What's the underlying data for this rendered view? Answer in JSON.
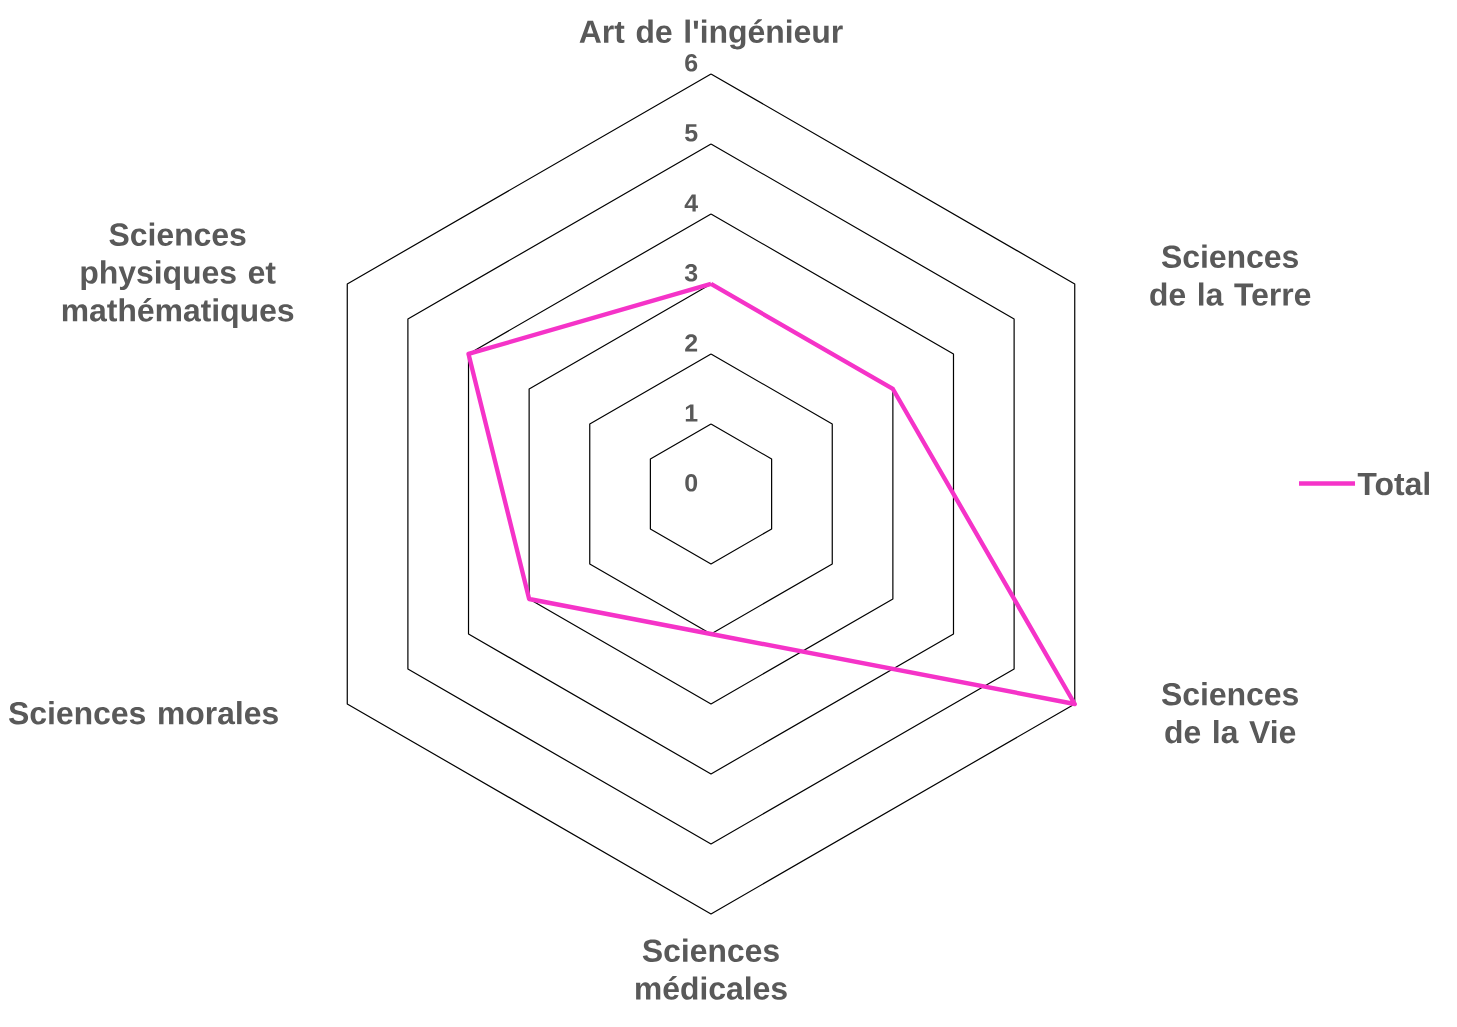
{
  "chart_data": {
    "type": "radar",
    "categories": [
      "Art de l'ingénieur",
      "Sciences de la Terre",
      "Sciences de la Vie",
      "Sciences médicales",
      "Sciences morales",
      "Sciences physiques et mathématiques"
    ],
    "series": [
      {
        "name": "Total",
        "color": "#f533c8",
        "values": [
          3,
          3,
          6,
          2,
          3,
          4
        ]
      }
    ],
    "ylim": [
      0,
      6
    ],
    "yticks": [
      0,
      1,
      2,
      3,
      4,
      5,
      6
    ],
    "grid": true,
    "legend": "right",
    "marker": "none"
  }
}
